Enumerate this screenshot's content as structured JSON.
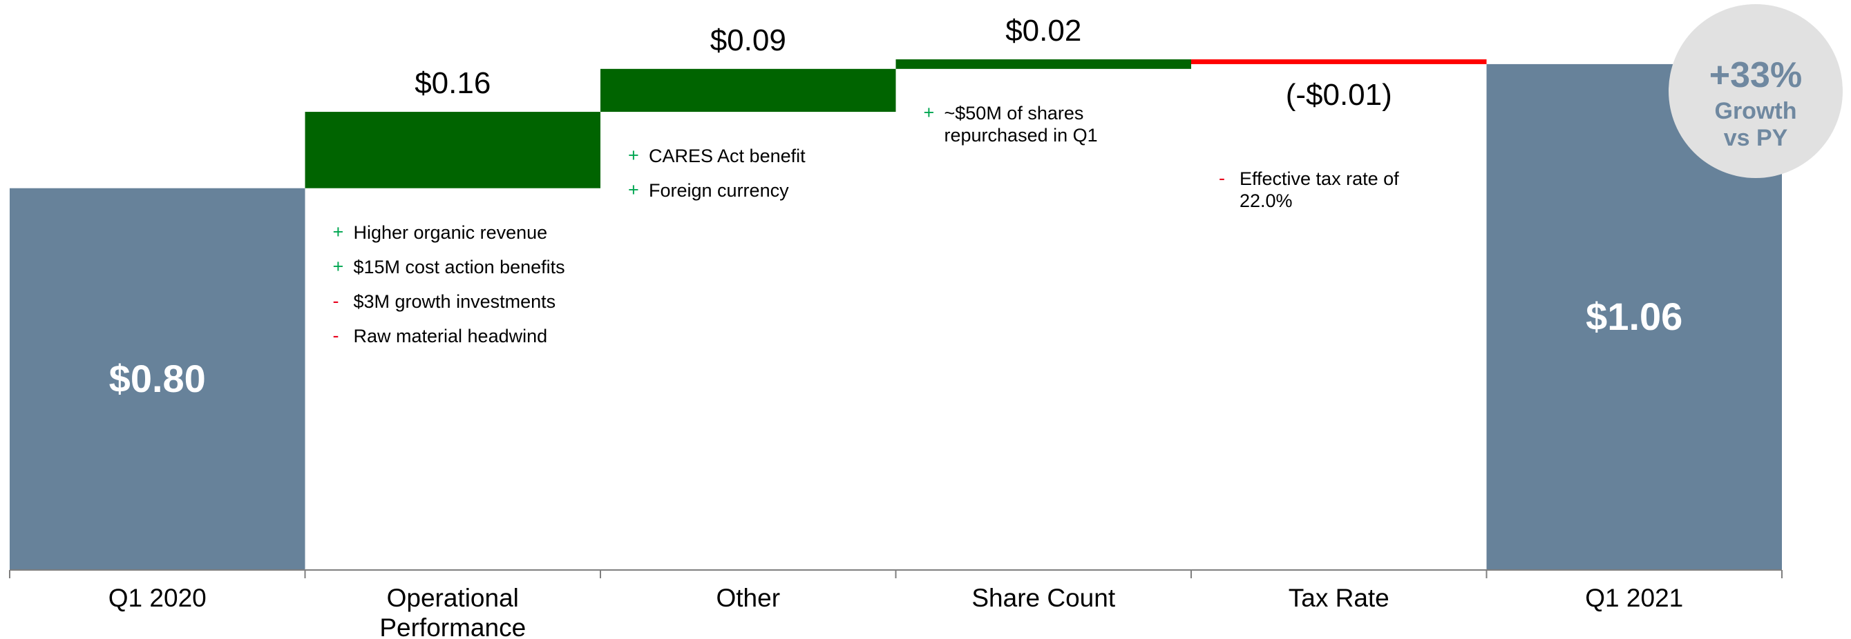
{
  "chart_data": {
    "type": "waterfall",
    "categories": [
      "Q1 2020",
      "Operational\nPerformance",
      "Other",
      "Share Count",
      "Tax Rate",
      "Q1 2021"
    ],
    "values": [
      0.8,
      0.16,
      0.09,
      0.02,
      -0.01,
      1.06
    ],
    "value_labels": [
      "$0.80",
      "$0.16",
      "$0.09",
      "$0.02",
      "(-$0.01)",
      "$1.06"
    ],
    "measure": [
      "absolute",
      "relative",
      "relative",
      "relative",
      "relative",
      "total"
    ],
    "colors": {
      "total": "#67829a",
      "increase": "#006400",
      "decrease": "#ff0000"
    },
    "bullets": [
      [],
      [
        {
          "sign": "+",
          "text": "Higher organic revenue"
        },
        {
          "sign": "+",
          "text": "$15M cost action benefits"
        },
        {
          "sign": "-",
          "text": "$3M growth investments"
        },
        {
          "sign": "-",
          "text": "Raw material headwind"
        }
      ],
      [
        {
          "sign": "+",
          "text": "CARES Act benefit"
        },
        {
          "sign": "+",
          "text": "Foreign currency"
        }
      ],
      [
        {
          "sign": "+",
          "text": "~$50M of shares\nrepurchased in Q1"
        }
      ],
      [
        {
          "sign": "-",
          "text": "Effective tax rate of\n22.0%"
        }
      ],
      []
    ],
    "bullet_colors": {
      "+": "#00a651",
      "-": "#e8001c"
    },
    "badge": {
      "value": "+33%",
      "label": "Growth vs PY"
    }
  }
}
